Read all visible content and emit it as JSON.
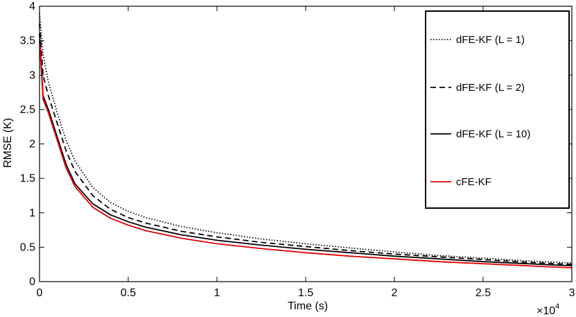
{
  "chart_data": {
    "type": "line",
    "xlabel": "Time (s)",
    "ylabel": "RMSE (K)",
    "x_multiplier": "×10",
    "x_multiplier_exp": "4",
    "xlim": [
      0,
      3
    ],
    "ylim": [
      0,
      4
    ],
    "xticks": [
      0,
      0.5,
      1,
      1.5,
      2,
      2.5,
      3
    ],
    "yticks": [
      0,
      0.5,
      1,
      1.5,
      2,
      2.5,
      3,
      3.5,
      4
    ],
    "xtick_labels": [
      "0",
      "0.5",
      "1",
      "1.5",
      "2",
      "2.5",
      "3"
    ],
    "ytick_labels": [
      "0",
      "0.5",
      "1",
      "1.5",
      "2",
      "2.5",
      "3",
      "3.5",
      "4"
    ],
    "grid": false,
    "legend_position": "top-right",
    "series": [
      {
        "name": "dFE-KF (L = 1)",
        "style": "dotted",
        "color": "#000000",
        "x": [
          0,
          0.02,
          0.05,
          0.1,
          0.15,
          0.2,
          0.3,
          0.4,
          0.5,
          0.6,
          0.8,
          1.0,
          1.25,
          1.5,
          1.75,
          2.0,
          2.25,
          2.5,
          2.75,
          3.0
        ],
        "y": [
          3.9,
          3.3,
          2.9,
          2.45,
          2.05,
          1.75,
          1.37,
          1.15,
          1.02,
          0.93,
          0.8,
          0.71,
          0.62,
          0.55,
          0.49,
          0.43,
          0.38,
          0.34,
          0.3,
          0.27
        ]
      },
      {
        "name": "dFE-KF (L = 2)",
        "style": "dashed",
        "color": "#000000",
        "x": [
          0,
          0.02,
          0.05,
          0.1,
          0.15,
          0.2,
          0.3,
          0.4,
          0.5,
          0.6,
          0.8,
          1.0,
          1.25,
          1.5,
          1.75,
          2.0,
          2.25,
          2.5,
          2.75,
          3.0
        ],
        "y": [
          3.75,
          3.0,
          2.7,
          2.3,
          1.9,
          1.6,
          1.25,
          1.05,
          0.93,
          0.85,
          0.73,
          0.65,
          0.57,
          0.51,
          0.45,
          0.4,
          0.36,
          0.32,
          0.28,
          0.25
        ]
      },
      {
        "name": "dFE-KF (L = 10)",
        "style": "solid",
        "color": "#000000",
        "x": [
          0,
          0.02,
          0.05,
          0.1,
          0.15,
          0.2,
          0.3,
          0.4,
          0.5,
          0.6,
          0.8,
          1.0,
          1.25,
          1.5,
          1.75,
          2.0,
          2.25,
          2.5,
          2.75,
          3.0
        ],
        "y": [
          3.6,
          2.7,
          2.5,
          2.1,
          1.7,
          1.42,
          1.13,
          0.97,
          0.87,
          0.79,
          0.68,
          0.6,
          0.53,
          0.47,
          0.42,
          0.37,
          0.33,
          0.29,
          0.26,
          0.23
        ]
      },
      {
        "name": "cFE-KF",
        "style": "solid",
        "color": "#e60000",
        "x": [
          0,
          0.02,
          0.05,
          0.1,
          0.15,
          0.2,
          0.3,
          0.4,
          0.5,
          0.6,
          0.8,
          1.0,
          1.25,
          1.5,
          1.75,
          2.0,
          2.25,
          2.5,
          2.75,
          3.0
        ],
        "y": [
          3.5,
          2.65,
          2.45,
          2.05,
          1.65,
          1.38,
          1.08,
          0.92,
          0.82,
          0.74,
          0.63,
          0.55,
          0.48,
          0.42,
          0.37,
          0.33,
          0.29,
          0.26,
          0.23,
          0.2
        ]
      }
    ]
  }
}
